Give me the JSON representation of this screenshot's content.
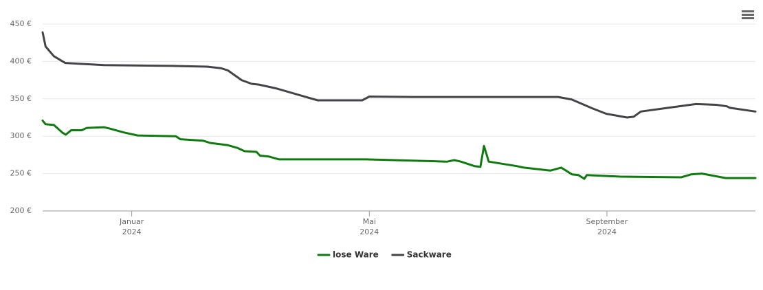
{
  "chart_data": {
    "type": "line",
    "series": [
      {
        "name": "lose Ware",
        "color": "#0f7a0f",
        "x": [
          -0.5,
          -0.45,
          -0.31,
          -0.17,
          -0.11,
          -0.02,
          0.16,
          0.24,
          0.53,
          0.64,
          0.87,
          1.1,
          1.74,
          1.82,
          2.2,
          2.32,
          2.62,
          2.79,
          2.9,
          3.1,
          3.16,
          3.3,
          3.48,
          4.94,
          6.31,
          6.43,
          6.54,
          6.77,
          6.87,
          6.93,
          7.01,
          7.48,
          7.6,
          8.05,
          8.23,
          8.41,
          8.52,
          8.62,
          8.66,
          9.22,
          10.25,
          10.42,
          10.6,
          11.0,
          11.5
        ],
        "values": [
          321,
          316,
          315,
          305,
          302,
          308,
          308,
          311,
          312,
          310,
          305,
          301,
          300,
          296,
          294,
          291,
          288,
          284,
          280,
          279,
          274,
          273,
          269,
          269,
          266,
          268,
          266,
          260,
          259,
          287,
          266,
          260,
          258,
          254,
          258,
          249,
          248,
          243,
          248,
          246,
          245,
          249,
          250,
          244,
          244
        ]
      },
      {
        "name": "Sackware",
        "color": "#434348",
        "x": [
          -0.5,
          -0.45,
          -0.31,
          -0.12,
          0.53,
          1.69,
          2.27,
          2.5,
          2.62,
          2.85,
          3.02,
          3.14,
          3.43,
          3.78,
          4.13,
          4.88,
          5.0,
          5.75,
          6.91,
          8.18,
          8.41,
          8.76,
          8.99,
          9.34,
          9.45,
          9.57,
          10.03,
          10.5,
          10.84,
          11.02,
          11.07,
          11.5
        ],
        "values": [
          439,
          420,
          407,
          398,
          395,
          394,
          393,
          391,
          388,
          375,
          370,
          369,
          364,
          356,
          348,
          348,
          353,
          352.5,
          352.5,
          352.5,
          349,
          337,
          330,
          325,
          326,
          333,
          338,
          343,
          342,
          340,
          338,
          333
        ]
      }
    ],
    "xlim": [
      -0.5,
      11.5
    ],
    "xticks": [
      {
        "value": 1,
        "label": [
          "Januar",
          "2024"
        ]
      },
      {
        "value": 5,
        "label": [
          "Mai",
          "2024"
        ]
      },
      {
        "value": 9,
        "label": [
          "September",
          "2024"
        ]
      }
    ],
    "ylim": [
      200,
      450
    ],
    "yticks": [
      {
        "value": 200,
        "label": "200 €"
      },
      {
        "value": 250,
        "label": "250 €"
      },
      {
        "value": 300,
        "label": "300 €"
      },
      {
        "value": 350,
        "label": "350 €"
      },
      {
        "value": 400,
        "label": "400 €"
      },
      {
        "value": 450,
        "label": "450 €"
      }
    ],
    "grid": true,
    "legend": "bottom"
  }
}
